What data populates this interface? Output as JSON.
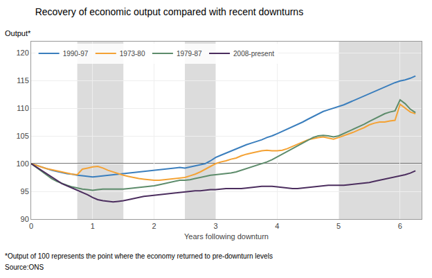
{
  "chart_data": {
    "type": "line",
    "title": "Recovery of economic output compared with recent downturns",
    "ylabel": "Output*",
    "xlabel": "Years following downturn",
    "annotations": [
      "*Output of 100 represents the point where the economy returned to pre-downturn levels",
      "Source:ONS"
    ],
    "xlim": [
      0,
      6.35
    ],
    "ylim": [
      90,
      122
    ],
    "xticks": [
      0,
      1,
      2,
      3,
      4,
      5,
      6
    ],
    "yticks": [
      90,
      95,
      100,
      105,
      110,
      115,
      120
    ],
    "grid": true,
    "legend": "upper left",
    "reference_y": 100,
    "shaded_regions": {
      "color": "#DCDCDC",
      "ranges": [
        [
          0.75,
          1.5
        ],
        [
          2.5,
          3.0
        ],
        [
          5.0,
          6.35
        ]
      ]
    },
    "series": [
      {
        "name": "1990-97",
        "color": "#3A7EBD",
        "x": [
          0,
          0.083,
          0.167,
          0.25,
          0.333,
          0.417,
          0.5,
          0.583,
          0.667,
          0.75,
          0.833,
          0.917,
          1.0,
          1.083,
          1.167,
          1.25,
          1.333,
          1.417,
          1.5,
          1.583,
          1.667,
          1.75,
          1.833,
          1.917,
          2.0,
          2.083,
          2.167,
          2.25,
          2.333,
          2.417,
          2.5,
          2.583,
          2.667,
          2.75,
          2.833,
          2.917,
          3.0,
          3.083,
          3.167,
          3.25,
          3.333,
          3.417,
          3.5,
          3.583,
          3.667,
          3.75,
          3.833,
          3.917,
          4.0,
          4.083,
          4.167,
          4.25,
          4.333,
          4.417,
          4.5,
          4.583,
          4.667,
          4.75,
          4.833,
          4.917,
          5.0,
          5.083,
          5.167,
          5.25,
          5.333,
          5.417,
          5.5,
          5.583,
          5.667,
          5.75,
          5.833,
          5.917,
          6.0,
          6.083,
          6.167,
          6.25
        ],
        "values": [
          100,
          99.7,
          99.4,
          99.1,
          98.8,
          98.6,
          98.4,
          98.2,
          98.1,
          97.9,
          97.8,
          97.7,
          97.6,
          97.7,
          97.8,
          97.9,
          98.0,
          98.1,
          98.2,
          98.3,
          98.4,
          98.5,
          98.6,
          98.7,
          98.8,
          98.9,
          99.0,
          99.1,
          99.2,
          99.3,
          99.2,
          99.4,
          99.6,
          99.8,
          100.0,
          100.5,
          101.1,
          101.5,
          101.9,
          102.3,
          102.7,
          103.1,
          103.4,
          103.7,
          104.0,
          104.3,
          104.7,
          105.0,
          105.4,
          105.8,
          106.2,
          106.6,
          107.0,
          107.5,
          108.0,
          108.5,
          109.0,
          109.4,
          109.7,
          110.0,
          110.3,
          110.6,
          111.0,
          111.4,
          111.8,
          112.2,
          112.6,
          113.0,
          113.4,
          113.8,
          114.2,
          114.6,
          114.9,
          115.1,
          115.4,
          115.8
        ]
      },
      {
        "name": "1973-80",
        "color": "#F4A234",
        "x": [
          0,
          0.083,
          0.167,
          0.25,
          0.333,
          0.417,
          0.5,
          0.583,
          0.667,
          0.75,
          0.833,
          0.917,
          1.0,
          1.083,
          1.167,
          1.25,
          1.333,
          1.417,
          1.5,
          1.583,
          1.667,
          1.75,
          1.833,
          1.917,
          2.0,
          2.083,
          2.167,
          2.25,
          2.333,
          2.417,
          2.5,
          2.583,
          2.667,
          2.75,
          2.833,
          2.917,
          3.0,
          3.083,
          3.167,
          3.25,
          3.333,
          3.417,
          3.5,
          3.583,
          3.667,
          3.75,
          3.833,
          3.917,
          4.0,
          4.083,
          4.167,
          4.25,
          4.333,
          4.417,
          4.5,
          4.583,
          4.667,
          4.75,
          4.833,
          4.917,
          5.0,
          5.083,
          5.167,
          5.25,
          5.333,
          5.417,
          5.5,
          5.583,
          5.667,
          5.75,
          5.833,
          5.917,
          6.0,
          6.083,
          6.167,
          6.25
        ],
        "values": [
          100,
          99.7,
          99.4,
          99.1,
          98.9,
          98.7,
          98.5,
          98.3,
          98.1,
          98.0,
          99.0,
          99.2,
          99.4,
          99.5,
          99.2,
          98.8,
          98.5,
          98.2,
          97.9,
          97.7,
          97.5,
          97.3,
          97.2,
          97.1,
          97.0,
          97.0,
          97.1,
          97.2,
          97.3,
          97.4,
          97.5,
          97.8,
          98.1,
          98.5,
          99.0,
          99.5,
          100.0,
          100.3,
          100.5,
          100.8,
          101.0,
          101.4,
          101.7,
          101.9,
          102.1,
          102.3,
          102.4,
          102.3,
          102.3,
          102.4,
          102.7,
          103.1,
          103.5,
          104.0,
          104.3,
          104.5,
          104.7,
          104.8,
          104.6,
          104.4,
          104.7,
          105.0,
          105.4,
          105.7,
          106.1,
          106.5,
          107.0,
          107.3,
          107.5,
          107.5,
          107.7,
          107.8,
          110.7,
          110.0,
          109.3,
          109.0
        ]
      },
      {
        "name": "1979-87",
        "color": "#5D8C6B",
        "x": [
          0,
          0.083,
          0.167,
          0.25,
          0.333,
          0.417,
          0.5,
          0.583,
          0.667,
          0.75,
          0.833,
          0.917,
          1.0,
          1.083,
          1.167,
          1.25,
          1.333,
          1.417,
          1.5,
          1.583,
          1.667,
          1.75,
          1.833,
          1.917,
          2.0,
          2.083,
          2.167,
          2.25,
          2.333,
          2.417,
          2.5,
          2.583,
          2.667,
          2.75,
          2.833,
          2.917,
          3.0,
          3.083,
          3.167,
          3.25,
          3.333,
          3.417,
          3.5,
          3.583,
          3.667,
          3.75,
          3.833,
          3.917,
          4.0,
          4.083,
          4.167,
          4.25,
          4.333,
          4.417,
          4.5,
          4.583,
          4.667,
          4.75,
          4.833,
          4.917,
          5.0,
          5.083,
          5.167,
          5.25,
          5.333,
          5.417,
          5.5,
          5.583,
          5.667,
          5.75,
          5.833,
          5.917,
          6.0,
          6.083,
          6.167,
          6.25
        ],
        "values": [
          100,
          99.3,
          98.6,
          97.9,
          97.3,
          96.8,
          96.4,
          96.1,
          95.8,
          95.6,
          95.4,
          95.3,
          95.2,
          95.3,
          95.4,
          95.4,
          95.4,
          95.4,
          95.4,
          95.5,
          95.6,
          95.7,
          95.8,
          95.9,
          96.0,
          96.2,
          96.4,
          96.6,
          96.8,
          97.0,
          97.0,
          97.1,
          97.3,
          97.5,
          97.7,
          97.9,
          98.0,
          98.1,
          98.2,
          98.3,
          98.5,
          98.8,
          99.1,
          99.4,
          99.7,
          100.0,
          100.3,
          100.7,
          101.2,
          101.7,
          102.2,
          102.7,
          103.2,
          103.8,
          104.3,
          104.7,
          105.0,
          105.1,
          105.0,
          104.8,
          105.0,
          105.4,
          105.8,
          106.2,
          106.6,
          107.1,
          107.6,
          108.1,
          108.6,
          109.0,
          109.3,
          109.5,
          111.5,
          110.8,
          109.8,
          109.2
        ]
      },
      {
        "name": "2008-present",
        "color": "#4B2D5E",
        "x": [
          0,
          0.083,
          0.167,
          0.25,
          0.333,
          0.417,
          0.5,
          0.583,
          0.667,
          0.75,
          0.833,
          0.917,
          1.0,
          1.083,
          1.167,
          1.25,
          1.333,
          1.417,
          1.5,
          1.583,
          1.667,
          1.75,
          1.833,
          1.917,
          2.0,
          2.083,
          2.167,
          2.25,
          2.333,
          2.417,
          2.5,
          2.583,
          2.667,
          2.75,
          2.833,
          2.917,
          3.0,
          3.083,
          3.167,
          3.25,
          3.333,
          3.417,
          3.5,
          3.583,
          3.667,
          3.75,
          3.833,
          3.917,
          4.0,
          4.083,
          4.167,
          4.25,
          4.333,
          4.417,
          4.5,
          4.583,
          4.667,
          4.75,
          4.833,
          4.917,
          5.0,
          5.083,
          5.167,
          5.25,
          5.333,
          5.417,
          5.5,
          5.583,
          5.667,
          5.75,
          5.833,
          5.917,
          6.0,
          6.083,
          6.167,
          6.25
        ],
        "values": [
          100,
          99.4,
          98.8,
          98.2,
          97.5,
          96.9,
          96.4,
          96.0,
          95.6,
          95.2,
          94.8,
          94.4,
          93.9,
          93.5,
          93.3,
          93.2,
          93.1,
          93.2,
          93.3,
          93.5,
          93.7,
          93.9,
          94.1,
          94.2,
          94.3,
          94.4,
          94.5,
          94.6,
          94.7,
          94.8,
          94.9,
          95.0,
          95.1,
          95.1,
          95.2,
          95.3,
          95.3,
          95.4,
          95.5,
          95.5,
          95.5,
          95.5,
          95.6,
          95.7,
          95.8,
          95.9,
          95.9,
          95.9,
          95.8,
          95.7,
          95.6,
          95.5,
          95.5,
          95.6,
          95.7,
          95.8,
          95.9,
          96.0,
          96.1,
          96.1,
          96.1,
          96.1,
          96.2,
          96.3,
          96.4,
          96.5,
          96.6,
          96.8,
          97.0,
          97.2,
          97.4,
          97.6,
          97.8,
          98.0,
          98.3,
          98.7
        ]
      }
    ]
  }
}
